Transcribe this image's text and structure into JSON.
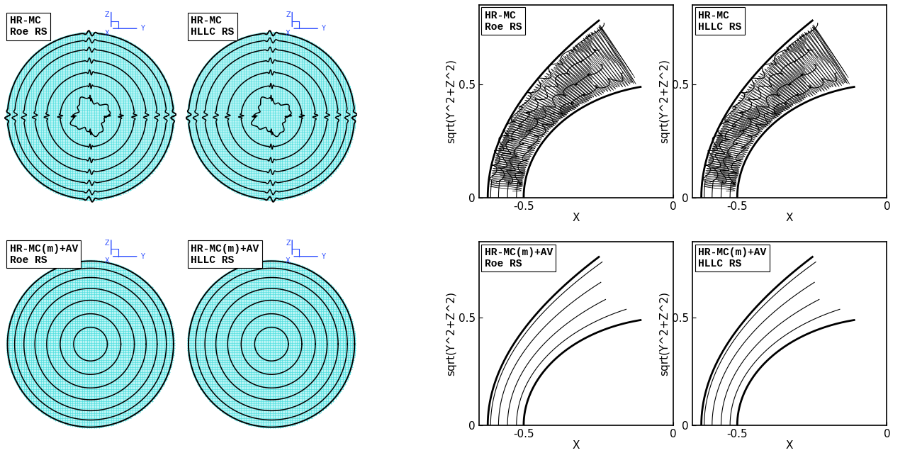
{
  "chart_data": [
    {
      "type": "mesh",
      "annotations": [
        "HR-MC",
        "Roe RS"
      ],
      "triad_labels": [
        "Z",
        "Y",
        "X"
      ],
      "tick_labels": false,
      "color": "#40dcdc",
      "line_style": "jagged"
    },
    {
      "type": "mesh",
      "annotations": [
        "HR-MC",
        "HLLC RS"
      ],
      "triad_labels": [
        "Z",
        "Y",
        "X"
      ],
      "tick_labels": false,
      "color": "#40dcdc",
      "line_style": "jagged"
    },
    {
      "type": "mesh",
      "annotations": [
        "HR-MC(m)+AV",
        "Roe RS"
      ],
      "triad_labels": [
        "Z",
        "Y",
        "X"
      ],
      "tick_labels": false,
      "color": "#40dcdc",
      "line_style": "smooth"
    },
    {
      "type": "mesh",
      "annotations": [
        "HR-MC(m)+AV",
        "HLLC RS"
      ],
      "triad_labels": [
        "Z",
        "Y",
        "X"
      ],
      "tick_labels": false,
      "color": "#40dcdc",
      "line_style": "smooth"
    },
    {
      "type": "contour",
      "annotations": [
        "HR-MC",
        "Roe RS"
      ],
      "xlabel": "X",
      "ylabel": "sqrt(Y^2+Z^2)",
      "xlim": [
        -0.65,
        0
      ],
      "ylim": [
        0,
        0.85
      ],
      "xticks": [
        -0.5,
        0
      ],
      "yticks": [
        0,
        0.5
      ],
      "color": "#000000",
      "line_style": "jagged"
    },
    {
      "type": "contour",
      "annotations": [
        "HR-MC",
        "HLLC RS"
      ],
      "xlabel": "X",
      "ylabel": "sqrt(Y^2+Z^2)",
      "xlim": [
        -0.65,
        0
      ],
      "ylim": [
        0,
        0.85
      ],
      "xticks": [
        -0.5,
        0
      ],
      "yticks": [
        0,
        0.5
      ],
      "color": "#000000",
      "line_style": "jagged"
    },
    {
      "type": "contour",
      "annotations": [
        "HR-MC(m)+AV",
        "Roe RS"
      ],
      "xlabel": "X",
      "ylabel": "sqrt(Y^2+Z^2)",
      "xlim": [
        -0.65,
        0
      ],
      "ylim": [
        0,
        0.85
      ],
      "xticks": [
        -0.5,
        0
      ],
      "yticks": [
        0,
        0.5
      ],
      "color": "#000000",
      "line_style": "smooth"
    },
    {
      "type": "contour",
      "annotations": [
        "HR-MC(m)+AV",
        "HLLC RS"
      ],
      "xlabel": "X",
      "ylabel": "sqrt(Y^2+Z^2)",
      "xlim": [
        -0.65,
        0
      ],
      "ylim": [
        0,
        0.85
      ],
      "xticks": [
        -0.5,
        0
      ],
      "yticks": [
        0,
        0.5
      ],
      "color": "#000000",
      "line_style": "smooth"
    }
  ]
}
